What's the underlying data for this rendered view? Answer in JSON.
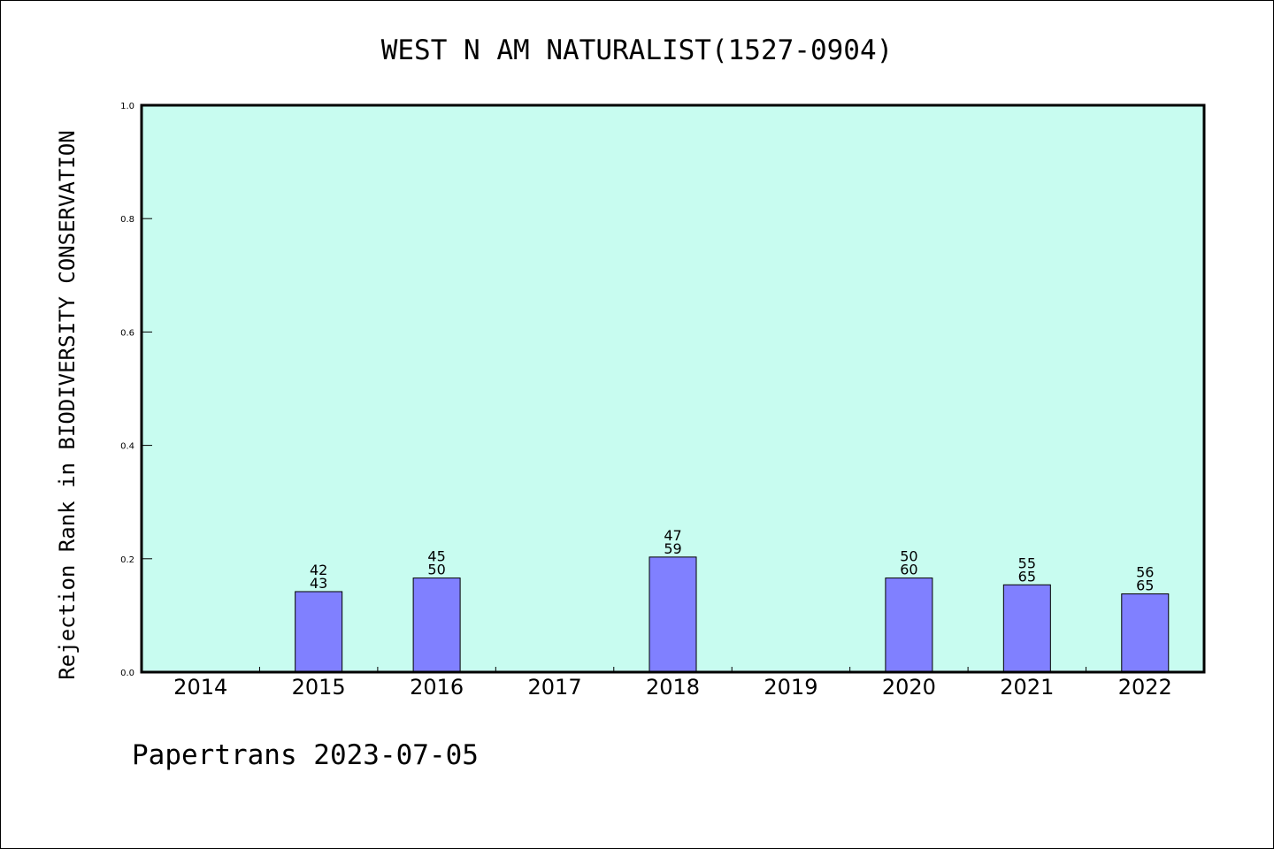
{
  "chart_data": {
    "type": "bar",
    "title": "WEST N AM NATURALIST(1527-0904)",
    "xlabel": "",
    "ylabel": "Rejection Rank in BIODIVERSITY CONSERVATION",
    "categories": [
      "2014",
      "2015",
      "2016",
      "2017",
      "2018",
      "2019",
      "2020",
      "2021",
      "2022"
    ],
    "values": [
      null,
      0.142,
      0.166,
      null,
      0.203,
      null,
      0.166,
      0.154,
      0.138
    ],
    "bar_labels": [
      null,
      [
        "42",
        "43"
      ],
      [
        "45",
        "50"
      ],
      null,
      [
        "47",
        "59"
      ],
      null,
      [
        "50",
        "60"
      ],
      [
        "55",
        "65"
      ],
      [
        "56",
        "65"
      ]
    ],
    "ylim": [
      0,
      1.0
    ],
    "yticks": [
      "0.0",
      "0.2",
      "0.4",
      "0.6",
      "0.8",
      "1.0"
    ],
    "grid": false,
    "legend": "none",
    "colors": {
      "plot_background": "#c8fcf0",
      "bar_fill": "#8080ff",
      "bar_stroke": "#000000",
      "axis": "#000000"
    }
  },
  "footer": {
    "text": "Papertrans 2023-07-05"
  }
}
